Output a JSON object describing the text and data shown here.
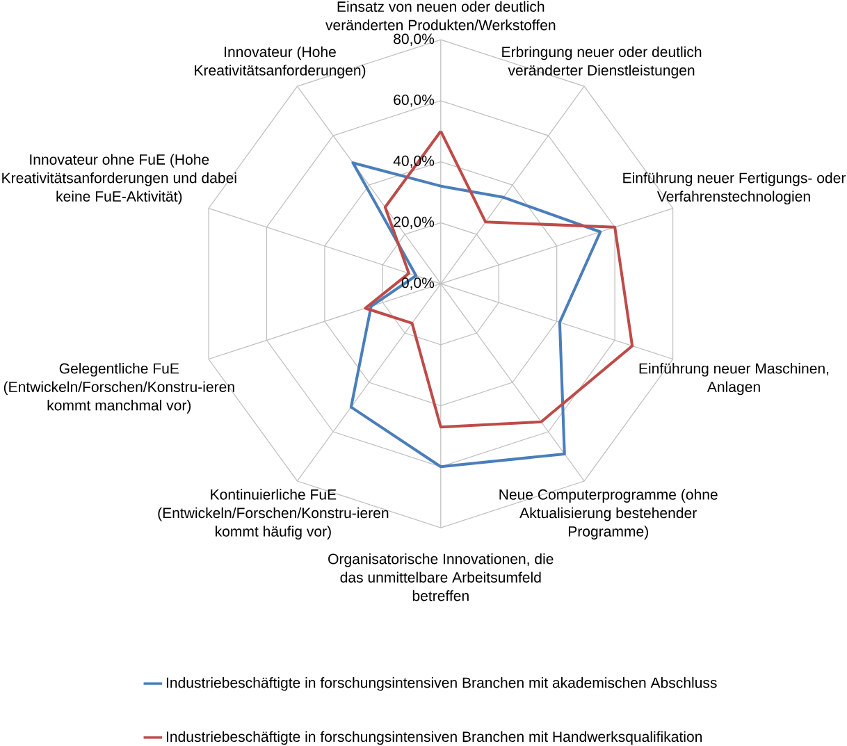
{
  "chart_data": {
    "type": "radar",
    "categories": [
      "Einsatz von neuen oder deutlich veränderten Produkten/Werkstoffen",
      "Erbringung neuer oder deutlich veränderter Dienstleistungen",
      "Einführung neuer Fertigungs- oder Verfahrenstechnologien",
      "Einführung neuer Maschinen, Anlagen",
      "Neue Computerprogramme (ohne Aktualisierung bestehender Programme)",
      "Organisatorische Innovationen, die das unmittelbare Arbeitsumfeld betreffen",
      "Kontinuierliche FuE (Entwickeln/Forschen/Konstru-ieren kommt häufig vor)",
      "Gelegentliche FuE (Entwickeln/Forschen/Konstru-ieren kommt manchmal vor)",
      "Innovateur ohne FuE (Hohe Kreativitätsanforderungen und dabei keine FuE-Aktivität)",
      "Innovateur (Hohe Kreativitätsanforderungen)"
    ],
    "series": [
      {
        "name": "Industriebeschäftigte in forschungsintensiven Branchen mit akademischen Abschluss",
        "color": "#4a7ebb",
        "values": [
          32,
          35,
          55,
          41,
          69,
          60,
          50,
          24,
          8.5,
          49
        ]
      },
      {
        "name": "Industriebeschäftigte in forschungsintensiven Branchen mit Handwerksqualifikation",
        "color": "#be4b48",
        "values": [
          50,
          25,
          60,
          66,
          56,
          47,
          16,
          26,
          11,
          31
        ]
      }
    ],
    "ylim": [
      0,
      80
    ],
    "yticks": [
      {
        "value": 0,
        "label": "0,0%"
      },
      {
        "value": 20,
        "label": "20,0%"
      },
      {
        "value": 40,
        "label": "40,0%"
      },
      {
        "value": 60,
        "label": "60,0%"
      },
      {
        "value": 80,
        "label": "80,0%"
      }
    ],
    "grid": true,
    "legend": "bottom"
  }
}
